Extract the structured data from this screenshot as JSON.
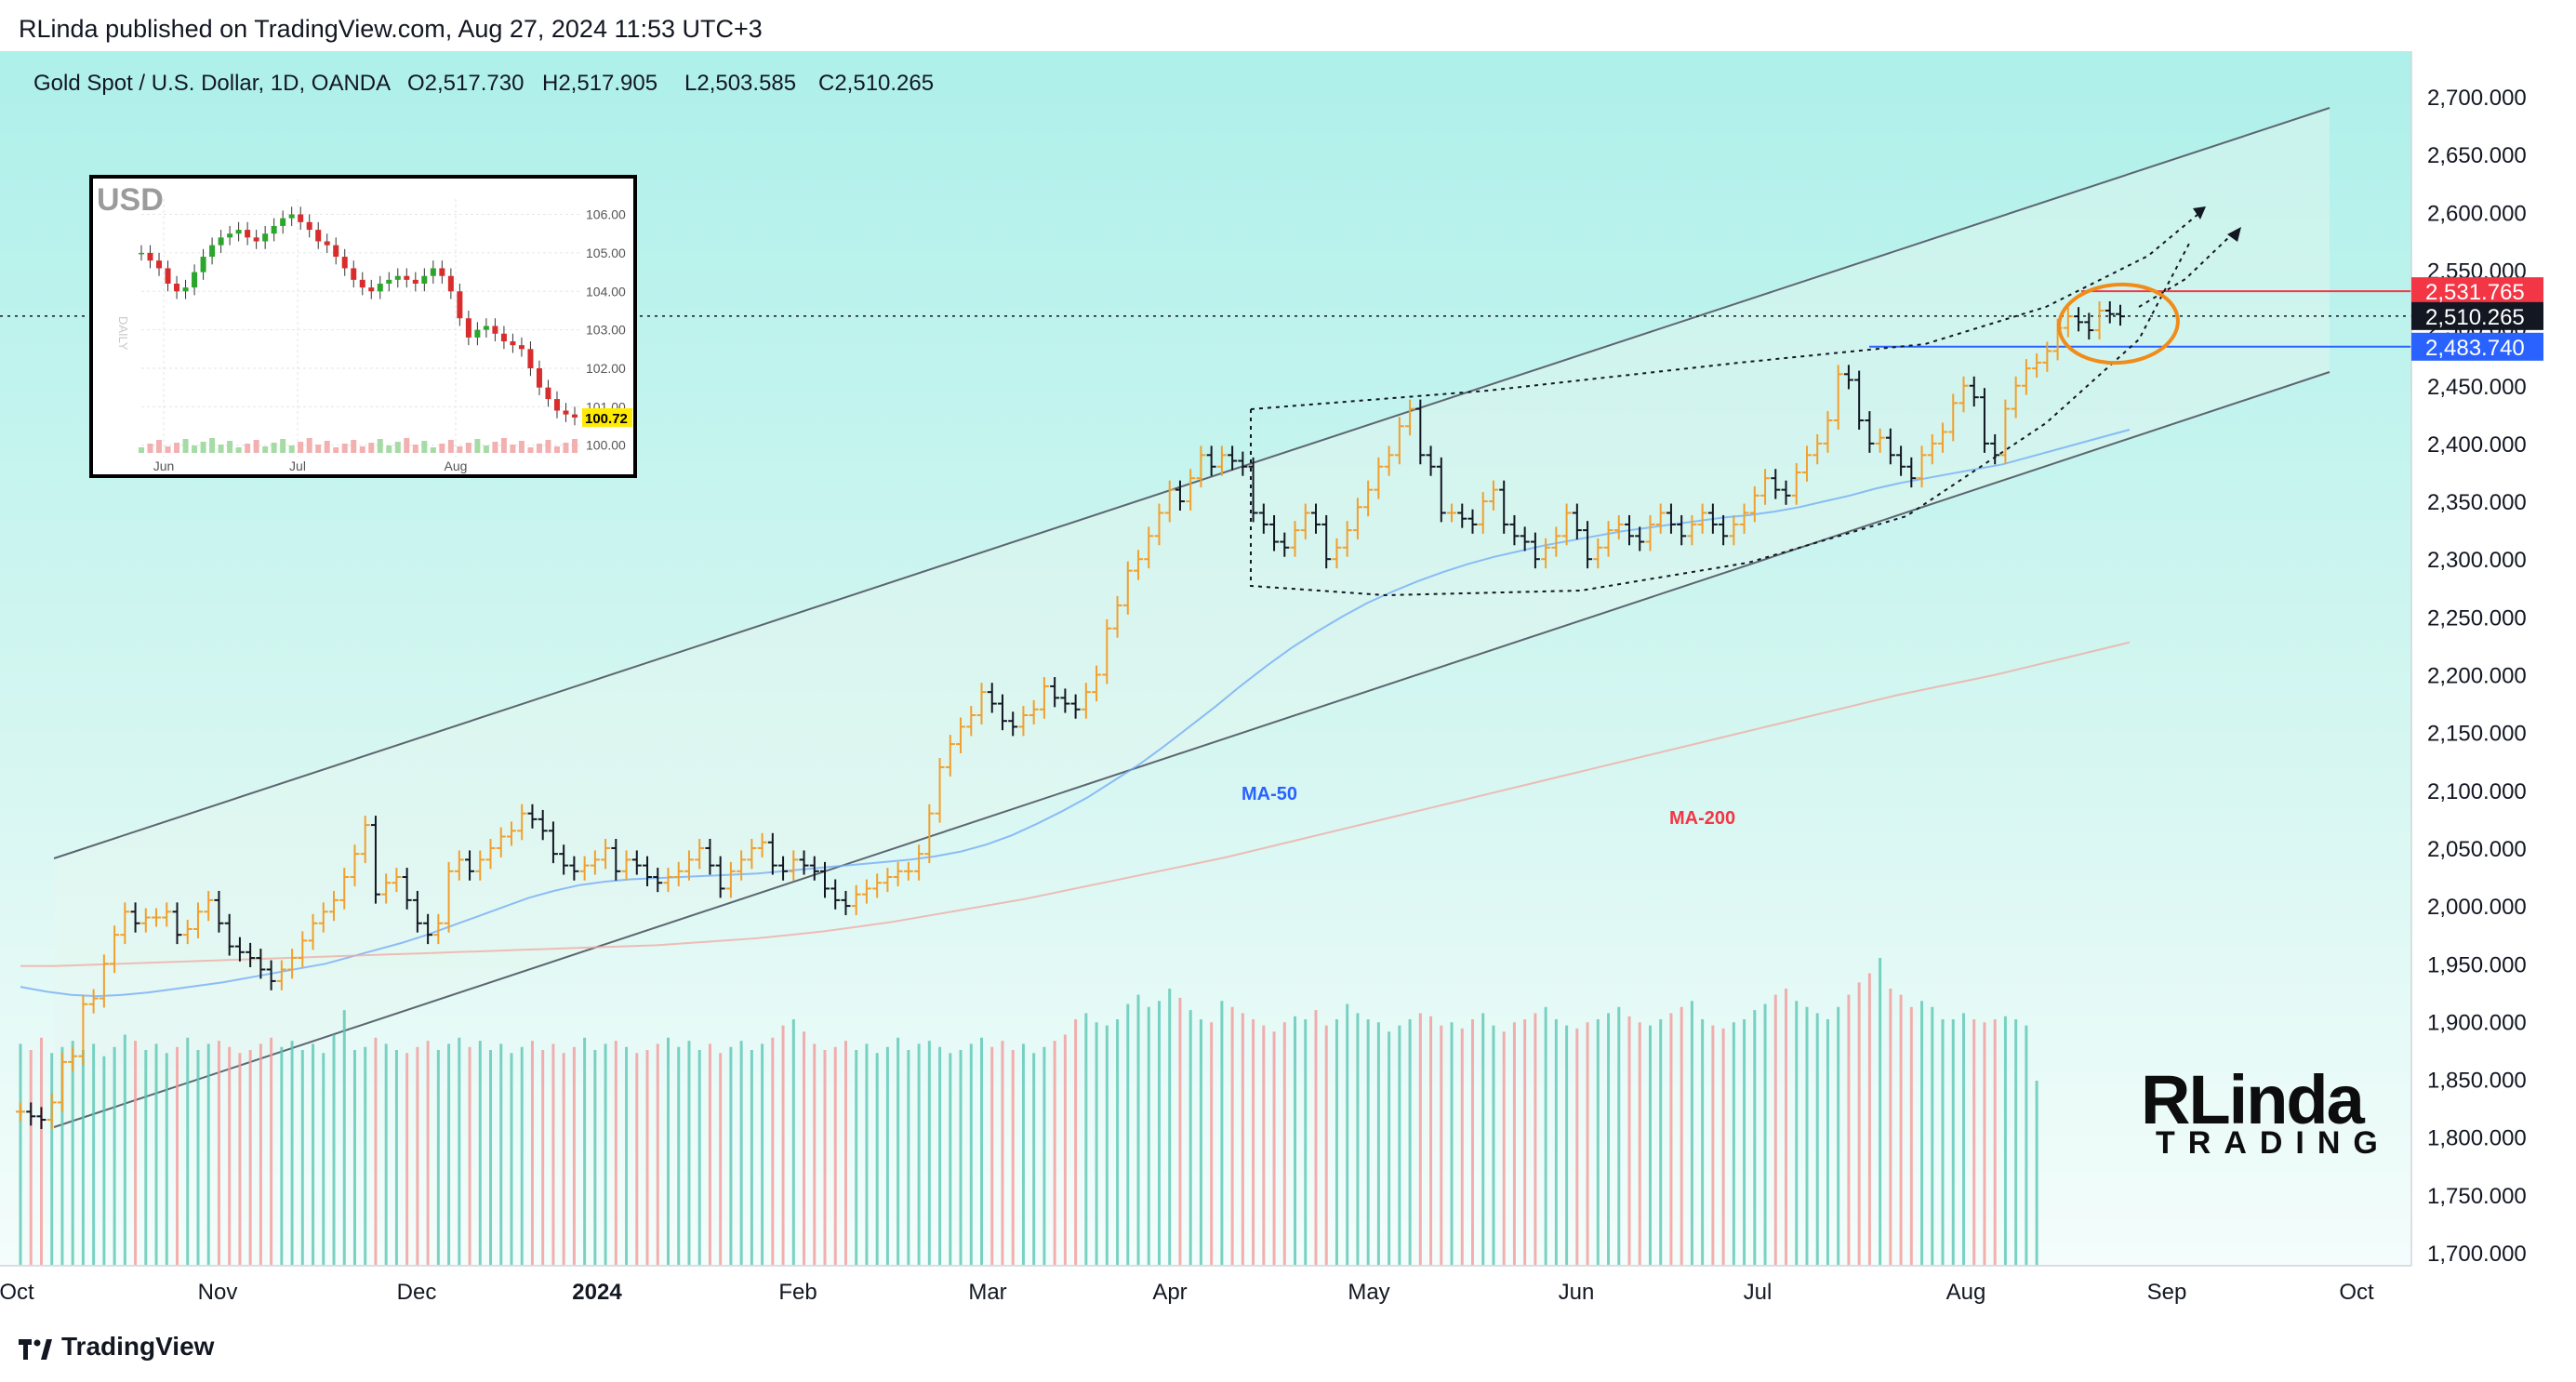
{
  "header": {
    "published": "RLinda published on TradingView.com, Aug 27, 2024 11:53 UTC+3"
  },
  "footer": {
    "brand": "TradingView"
  },
  "watermark": {
    "line1": "RLinda",
    "line2": "TRADING"
  },
  "chart_data": {
    "type": "line",
    "title": "Gold Spot / U.S. Dollar, 1D, OANDA",
    "ohlc": {
      "O": "O2,517.730",
      "H": "H2,517.905",
      "L": "L2,503.585",
      "C": "C2,510.265"
    },
    "x_ticks": [
      "Oct",
      "Nov",
      "Dec",
      "2024",
      "Feb",
      "Mar",
      "Apr",
      "May",
      "Jun",
      "Jul",
      "Aug",
      "Sep",
      "Oct"
    ],
    "y_ticks": [
      "2,700.000",
      "2,650.000",
      "2,600.000",
      "2,550.000",
      "2,500.000",
      "2,450.000",
      "2,400.000",
      "2,350.000",
      "2,300.000",
      "2,250.000",
      "2,200.000",
      "2,150.000",
      "2,100.000",
      "2,050.000",
      "2,000.000",
      "1,950.000",
      "1,900.000",
      "1,850.000",
      "1,800.000",
      "1,750.000",
      "1,700.000"
    ],
    "ylim": [
      1700,
      2700
    ],
    "price_labels": {
      "resistance": "2,531.765",
      "current": "2,510.265",
      "support": "2,483.740"
    },
    "series": [
      {
        "name": "XAUUSD close",
        "values": [
          1822,
          1818,
          1815,
          1830,
          1865,
          1870,
          1915,
          1920,
          1950,
          1975,
          1995,
          1985,
          1990,
          1990,
          1995,
          1975,
          1980,
          1995,
          2005,
          1985,
          1965,
          1960,
          1955,
          1945,
          1935,
          1945,
          1955,
          1970,
          1985,
          1995,
          2005,
          2025,
          2045,
          2070,
          2010,
          2020,
          2025,
          2005,
          1985,
          1975,
          1985,
          2030,
          2040,
          2030,
          2040,
          2050,
          2060,
          2065,
          2080,
          2075,
          2065,
          2045,
          2035,
          2030,
          2035,
          2040,
          2050,
          2030,
          2040,
          2035,
          2025,
          2020,
          2025,
          2030,
          2040,
          2050,
          2035,
          2015,
          2030,
          2040,
          2050,
          2055,
          2035,
          2030,
          2040,
          2035,
          2030,
          2015,
          2005,
          2000,
          2010,
          2015,
          2020,
          2025,
          2030,
          2030,
          2045,
          2080,
          2120,
          2140,
          2155,
          2165,
          2185,
          2175,
          2160,
          2155,
          2165,
          2170,
          2190,
          2180,
          2175,
          2170,
          2185,
          2200,
          2240,
          2260,
          2290,
          2300,
          2320,
          2340,
          2360,
          2350,
          2370,
          2390,
          2380,
          2390,
          2385,
          2380,
          2340,
          2330,
          2315,
          2310,
          2325,
          2340,
          2330,
          2300,
          2310,
          2325,
          2345,
          2360,
          2380,
          2390,
          2415,
          2430,
          2390,
          2380,
          2340,
          2340,
          2335,
          2330,
          2350,
          2360,
          2330,
          2320,
          2315,
          2300,
          2310,
          2320,
          2340,
          2325,
          2300,
          2310,
          2325,
          2330,
          2320,
          2315,
          2330,
          2340,
          2330,
          2320,
          2330,
          2340,
          2330,
          2320,
          2330,
          2340,
          2355,
          2370,
          2360,
          2355,
          2375,
          2390,
          2400,
          2420,
          2460,
          2455,
          2420,
          2400,
          2405,
          2390,
          2380,
          2370,
          2390,
          2400,
          2410,
          2435,
          2450,
          2440,
          2400,
          2390,
          2430,
          2450,
          2465,
          2470,
          2480,
          2500,
          2510,
          2505,
          2498,
          2515,
          2512,
          2510
        ]
      },
      {
        "name": "MA-50",
        "values": [
          1930,
          1926,
          1923,
          1922,
          1923,
          1925,
          1928,
          1931,
          1934,
          1938,
          1942,
          1946,
          1950,
          1956,
          1962,
          1968,
          1975,
          1983,
          1991,
          1999,
          2007,
          2013,
          2018,
          2021,
          2023,
          2024,
          2025,
          2026,
          2027,
          2028,
          2030,
          2032,
          2034,
          2036,
          2038,
          2040,
          2043,
          2047,
          2053,
          2061,
          2071,
          2082,
          2094,
          2108,
          2122,
          2138,
          2155,
          2172,
          2190,
          2207,
          2223,
          2237,
          2250,
          2262,
          2272,
          2281,
          2289,
          2296,
          2302,
          2307,
          2312,
          2316,
          2320,
          2324,
          2327,
          2330,
          2333,
          2336,
          2338,
          2341,
          2345,
          2350,
          2355,
          2361,
          2366,
          2370,
          2374,
          2378,
          2382,
          2388,
          2394,
          2400,
          2406,
          2412
        ]
      },
      {
        "name": "MA-200",
        "values": [
          1948,
          1948,
          1949,
          1950,
          1951,
          1952,
          1953,
          1954,
          1955,
          1956,
          1957,
          1958,
          1959,
          1960,
          1961,
          1962,
          1963,
          1964,
          1965,
          1966,
          1968,
          1970,
          1972,
          1975,
          1978,
          1982,
          1986,
          1991,
          1996,
          2001,
          2006,
          2012,
          2018,
          2024,
          2030,
          2036,
          2042,
          2049,
          2056,
          2063,
          2070,
          2077,
          2084,
          2091,
          2098,
          2105,
          2112,
          2119,
          2126,
          2133,
          2140,
          2147,
          2154,
          2161,
          2168,
          2175,
          2182,
          2188,
          2194,
          2200,
          2207,
          2214,
          2221,
          2228
        ]
      }
    ],
    "series_labels": {
      "ma50": "MA-50",
      "ma200": "MA-200"
    },
    "volume": [
      72,
      70,
      74,
      69,
      71,
      73,
      70,
      72,
      68,
      71,
      75,
      73,
      70,
      72,
      69,
      71,
      74,
      70,
      72,
      73,
      71,
      69,
      70,
      72,
      74,
      71,
      73,
      70,
      72,
      69,
      75,
      83,
      70,
      71,
      74,
      72,
      70,
      69,
      71,
      73,
      70,
      72,
      74,
      71,
      73,
      70,
      72,
      69,
      71,
      73,
      70,
      72,
      69,
      71,
      74,
      70,
      72,
      73,
      71,
      69,
      70,
      72,
      74,
      71,
      73,
      70,
      72,
      69,
      71,
      73,
      70,
      72,
      74,
      78,
      80,
      76,
      72,
      70,
      71,
      73,
      70,
      72,
      69,
      71,
      74,
      70,
      72,
      73,
      71,
      69,
      70,
      72,
      74,
      71,
      73,
      70,
      72,
      69,
      71,
      73,
      75,
      80,
      82,
      79,
      78,
      80,
      85,
      88,
      84,
      86,
      90,
      87,
      83,
      80,
      79,
      86,
      84,
      82,
      80,
      78,
      76,
      79,
      81,
      80,
      83,
      78,
      80,
      85,
      82,
      80,
      79,
      76,
      78,
      80,
      82,
      81,
      78,
      79,
      77,
      80,
      82,
      78,
      76,
      79,
      80,
      82,
      84,
      80,
      78,
      77,
      79,
      80,
      82,
      84,
      81,
      79,
      78,
      80,
      82,
      84,
      86,
      80,
      78,
      77,
      79,
      80,
      83,
      85,
      88,
      90,
      86,
      84,
      82,
      80,
      84,
      88,
      92,
      95,
      100,
      90,
      88,
      84,
      86,
      84,
      80,
      80,
      82,
      80,
      79,
      80,
      81,
      80,
      78,
      60
    ],
    "inset": {
      "label": "USD",
      "side_label": "DAILY",
      "y_ticks": [
        "106.00",
        "105.00",
        "104.00",
        "103.00",
        "102.00",
        "101.00",
        "100.00"
      ],
      "ylim": [
        99.8,
        106.4
      ],
      "x_ticks": [
        "Jun",
        "Jul",
        "Aug"
      ],
      "current": "100.72",
      "values": [
        105.0,
        104.8,
        104.6,
        104.2,
        104.0,
        104.1,
        104.5,
        104.9,
        105.2,
        105.4,
        105.5,
        105.6,
        105.4,
        105.3,
        105.5,
        105.7,
        105.9,
        106.0,
        105.8,
        105.6,
        105.3,
        105.2,
        104.9,
        104.6,
        104.3,
        104.1,
        104.0,
        104.2,
        104.3,
        104.4,
        104.3,
        104.2,
        104.4,
        104.6,
        104.4,
        104.0,
        103.3,
        102.8,
        103.0,
        103.1,
        102.9,
        102.7,
        102.6,
        102.5,
        102.0,
        101.5,
        101.2,
        100.9,
        100.8,
        100.72
      ]
    }
  }
}
